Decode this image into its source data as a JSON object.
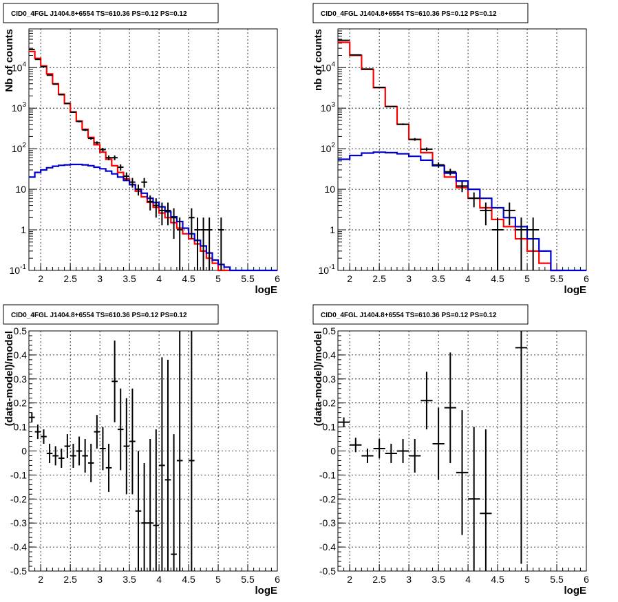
{
  "chart_data": [
    {
      "type": "line",
      "title": "CID0_4FGL J1404.8+6554 TS=610.36 PS=0.12 PS=0.12",
      "xlabel": "logE",
      "ylabel": "Nb of counts",
      "xlim": [
        1.8,
        6.0
      ],
      "ylim": [
        0.1,
        90000
      ],
      "yscale": "log",
      "grid": true,
      "x_ticks": [
        "2",
        "2.5",
        "3",
        "3.5",
        "4",
        "4.5",
        "5",
        "5.5",
        "6"
      ],
      "y_ticks": [
        "10^-1",
        "1",
        "10",
        "10^2",
        "10^3",
        "10^4"
      ],
      "bin_width": 0.1,
      "series": [
        {
          "color": "#ff0000",
          "style": "step",
          "x": [
            1.8,
            1.9,
            2.0,
            2.1,
            2.2,
            2.3,
            2.4,
            2.5,
            2.6,
            2.7,
            2.8,
            2.9,
            3.0,
            3.1,
            3.2,
            3.3,
            3.4,
            3.5,
            3.6,
            3.7,
            3.8,
            3.9,
            4.0,
            4.1,
            4.2,
            4.3,
            4.4,
            4.5,
            4.6,
            4.7,
            4.8,
            4.9,
            5.0,
            5.1
          ],
          "values": [
            25000,
            17000,
            11000,
            7000,
            4000,
            2200,
            1300,
            800,
            480,
            300,
            190,
            125,
            82,
            55,
            38,
            26,
            18,
            13,
            9,
            6.5,
            4.8,
            3.6,
            2.6,
            2.0,
            1.5,
            1.1,
            0.8,
            0.6,
            0.45,
            0.3,
            0.2,
            0.15,
            0.1,
            0.1
          ]
        },
        {
          "color": "#0000cc",
          "style": "step",
          "x": [
            1.8,
            1.9,
            2.0,
            2.1,
            2.2,
            2.3,
            2.4,
            2.5,
            2.6,
            2.7,
            2.8,
            2.9,
            3.0,
            3.1,
            3.2,
            3.3,
            3.4,
            3.5,
            3.6,
            3.7,
            3.8,
            3.9,
            4.0,
            4.1,
            4.2,
            4.3,
            4.4,
            4.5,
            4.6,
            4.7,
            4.8,
            4.9,
            5.0,
            5.1,
            5.2,
            5.3,
            5.4,
            5.5,
            5.6,
            5.7,
            5.8,
            5.9
          ],
          "values": [
            20,
            26,
            30,
            34,
            37,
            39,
            40,
            41,
            41,
            40,
            38,
            35,
            32,
            28,
            24,
            20,
            16.5,
            13,
            10,
            8,
            6,
            4.7,
            3.7,
            2.8,
            2.1,
            1.6,
            1.1,
            0.8,
            0.55,
            0.4,
            0.27,
            0.18,
            0.14,
            0.12,
            0.1,
            0.1,
            0.1,
            0.1,
            0.1,
            0.1,
            0.1,
            0.1
          ]
        },
        {
          "color": "#000000",
          "style": "errorbar",
          "x": [
            1.85,
            1.95,
            2.05,
            2.15,
            2.25,
            2.35,
            2.45,
            2.55,
            2.65,
            2.75,
            2.85,
            2.95,
            3.05,
            3.15,
            3.25,
            3.35,
            3.45,
            3.55,
            3.65,
            3.75,
            3.85,
            3.95,
            4.05,
            4.15,
            4.25,
            4.35,
            4.55,
            4.65,
            4.75,
            4.85,
            5.05
          ],
          "values": [
            28000,
            16000,
            10500,
            6500,
            3900,
            2150,
            1310,
            800,
            470,
            290,
            180,
            140,
            95,
            60,
            60,
            35,
            21,
            15,
            10,
            15,
            5,
            4,
            3,
            3,
            2,
            1,
            2,
            1,
            1,
            1,
            1
          ],
          "yerr_low": [
            170,
            125,
            100,
            80,
            62,
            46,
            36,
            28,
            22,
            17,
            13,
            12,
            10,
            8,
            8,
            6,
            5,
            4,
            3,
            4,
            2,
            2,
            1.7,
            1.7,
            1.4,
            1,
            1.4,
            1,
            1,
            1,
            1
          ],
          "yerr_high": [
            170,
            125,
            100,
            80,
            62,
            46,
            36,
            28,
            22,
            17,
            13,
            12,
            10,
            8,
            8,
            6,
            5,
            4,
            3,
            4,
            2,
            2,
            1.7,
            1.7,
            1.4,
            1,
            1.4,
            1,
            1,
            1,
            1
          ]
        }
      ]
    },
    {
      "type": "line",
      "title": "CID0_4FGL J1404.8+6554 TS=610.36 PS=0.12 PS=0.12",
      "xlabel": "logE",
      "ylabel": "nb of counts",
      "xlim": [
        1.8,
        6.0
      ],
      "ylim": [
        0.1,
        90000
      ],
      "yscale": "log",
      "grid": true,
      "x_ticks": [
        "2",
        "2.5",
        "3",
        "3.5",
        "4",
        "4.5",
        "5",
        "5.5",
        "6"
      ],
      "y_ticks": [
        "10^-1",
        "1",
        "10",
        "10^2",
        "10^3",
        "10^4"
      ],
      "bin_width": 0.2,
      "series": [
        {
          "color": "#ff0000",
          "style": "step",
          "x": [
            1.8,
            2.0,
            2.2,
            2.4,
            2.6,
            2.8,
            3.0,
            3.2,
            3.4,
            3.6,
            3.8,
            4.0,
            4.2,
            4.4,
            4.6,
            4.8,
            5.0,
            5.2,
            5.4
          ],
          "values": [
            42000,
            20000,
            9000,
            3200,
            1100,
            400,
            170,
            80,
            38,
            20,
            11,
            6,
            3.5,
            1.8,
            1.2,
            0.6,
            0.3,
            0.15,
            0.1
          ]
        },
        {
          "color": "#0000cc",
          "style": "step",
          "x": [
            1.8,
            2.0,
            2.2,
            2.4,
            2.6,
            2.8,
            3.0,
            3.2,
            3.4,
            3.6,
            3.8,
            4.0,
            4.2,
            4.4,
            4.6,
            4.8,
            5.0,
            5.2,
            5.4,
            5.6,
            5.8
          ],
          "values": [
            55,
            68,
            78,
            82,
            80,
            75,
            65,
            52,
            38,
            25,
            16,
            10,
            6,
            3.5,
            2,
            1.2,
            0.6,
            0.3,
            0.1,
            0.1,
            0.1
          ]
        },
        {
          "color": "#000000",
          "style": "errorbar",
          "x": [
            1.9,
            2.1,
            2.3,
            2.5,
            2.7,
            2.9,
            3.1,
            3.3,
            3.5,
            3.7,
            3.9,
            4.1,
            4.3,
            4.5,
            4.7,
            4.9,
            5.1
          ],
          "values": [
            47000,
            20500,
            9200,
            3250,
            1100,
            400,
            170,
            97,
            40,
            27,
            12,
            6,
            3,
            1,
            3,
            1,
            1
          ],
          "yerr_low": [
            217,
            143,
            96,
            57,
            33,
            20,
            13,
            10,
            6,
            5,
            3.5,
            2.4,
            1.7,
            1,
            1.7,
            1,
            1
          ],
          "yerr_high": [
            217,
            143,
            96,
            57,
            33,
            20,
            13,
            10,
            6,
            5,
            3.5,
            2.4,
            1.7,
            1,
            1.7,
            1,
            1
          ]
        }
      ]
    },
    {
      "type": "scatter",
      "title": "CID0_4FGL J1404.8+6554 TS=610.36 PS=0.12 PS=0.12",
      "xlabel": "logE",
      "ylabel": "(data-model)/model",
      "xlim": [
        1.8,
        6.0
      ],
      "ylim": [
        -0.5,
        0.5
      ],
      "grid": true,
      "x_ticks": [
        "2",
        "2.5",
        "3",
        "3.5",
        "4",
        "4.5",
        "5",
        "5.5",
        "6"
      ],
      "y_ticks": [
        "-0.5",
        "-0.4",
        "-0.3",
        "-0.2",
        "-0.1",
        "0",
        "0.1",
        "0.2",
        "0.3",
        "0.4",
        "0.5"
      ],
      "series": [
        {
          "color": "#000000",
          "style": "errorbar",
          "xerr": 0.05,
          "x": [
            1.85,
            1.95,
            2.05,
            2.15,
            2.25,
            2.35,
            2.45,
            2.55,
            2.65,
            2.75,
            2.85,
            2.95,
            3.05,
            3.15,
            3.25,
            3.35,
            3.45,
            3.55,
            3.65,
            3.75,
            3.85,
            3.95,
            4.05,
            4.15,
            4.25,
            4.35,
            4.55
          ],
          "values": [
            0.14,
            0.08,
            0.06,
            -0.01,
            -0.02,
            -0.03,
            0.02,
            -0.02,
            0.0,
            -0.02,
            -0.05,
            0.08,
            0.01,
            -0.07,
            0.29,
            0.09,
            0.02,
            0.04,
            -0.25,
            -0.3,
            -0.3,
            -0.31,
            -0.06,
            -0.12,
            -0.43,
            -0.04,
            -0.04
          ],
          "yerr": [
            0.02,
            0.03,
            0.03,
            0.04,
            0.04,
            0.04,
            0.05,
            0.05,
            0.06,
            0.07,
            0.08,
            0.07,
            0.09,
            0.1,
            0.17,
            0.17,
            0.2,
            0.22,
            0.25,
            0.25,
            0.35,
            0.4,
            0.45,
            0.5,
            0.5,
            0.55,
            0.6
          ]
        }
      ]
    },
    {
      "type": "scatter",
      "title": "CID0_4FGL J1404.8+6554 TS=610.36 PS=0.12 PS=0.12",
      "xlabel": "logE",
      "ylabel": "(data-model)/model",
      "xlim": [
        1.8,
        6.0
      ],
      "ylim": [
        -0.5,
        0.5
      ],
      "grid": true,
      "x_ticks": [
        "2",
        "2.5",
        "3",
        "3.5",
        "4",
        "4.5",
        "5",
        "5.5",
        "6"
      ],
      "y_ticks": [
        "-0.5",
        "-0.4",
        "-0.3",
        "-0.2",
        "-0.1",
        "0",
        "0.1",
        "0.2",
        "0.3",
        "0.4",
        "0.5"
      ],
      "series": [
        {
          "color": "#000000",
          "style": "errorbar",
          "xerr": 0.1,
          "x": [
            1.9,
            2.1,
            2.3,
            2.5,
            2.7,
            2.9,
            3.1,
            3.3,
            3.5,
            3.7,
            3.9,
            4.1,
            4.3,
            4.9
          ],
          "values": [
            0.12,
            0.025,
            -0.02,
            0.01,
            -0.01,
            0.0,
            -0.02,
            0.21,
            0.03,
            0.18,
            -0.09,
            -0.2,
            -0.26,
            0.43
          ],
          "yerr": [
            0.02,
            0.03,
            0.03,
            0.04,
            0.04,
            0.05,
            0.07,
            0.12,
            0.15,
            0.23,
            0.26,
            0.3,
            0.35,
            0.9
          ]
        }
      ]
    }
  ]
}
